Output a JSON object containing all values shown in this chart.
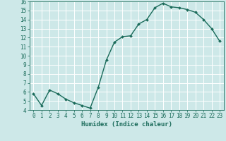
{
  "x": [
    0,
    1,
    2,
    3,
    4,
    5,
    6,
    7,
    8,
    9,
    10,
    11,
    12,
    13,
    14,
    15,
    16,
    17,
    18,
    19,
    20,
    21,
    22,
    23
  ],
  "y": [
    5.8,
    4.5,
    6.2,
    5.8,
    5.2,
    4.8,
    4.5,
    4.2,
    6.5,
    9.5,
    11.5,
    12.1,
    12.2,
    13.5,
    14.0,
    15.3,
    15.8,
    15.4,
    15.3,
    15.1,
    14.8,
    14.0,
    13.0,
    11.6
  ],
  "line_color": "#1a6b5a",
  "marker": "D",
  "markersize": 2.0,
  "linewidth": 1.0,
  "xlabel": "Humidex (Indice chaleur)",
  "xlim": [
    -0.5,
    23.5
  ],
  "ylim": [
    4,
    16
  ],
  "yticks": [
    4,
    5,
    6,
    7,
    8,
    9,
    10,
    11,
    12,
    13,
    14,
    15,
    16
  ],
  "xticks": [
    0,
    1,
    2,
    3,
    4,
    5,
    6,
    7,
    8,
    9,
    10,
    11,
    12,
    13,
    14,
    15,
    16,
    17,
    18,
    19,
    20,
    21,
    22,
    23
  ],
  "bg_color": "#cde8e8",
  "grid_color": "#ffffff",
  "tick_color": "#1a6b5a",
  "label_color": "#1a6b5a",
  "xlabel_fontsize": 6.5,
  "tick_fontsize": 5.5
}
